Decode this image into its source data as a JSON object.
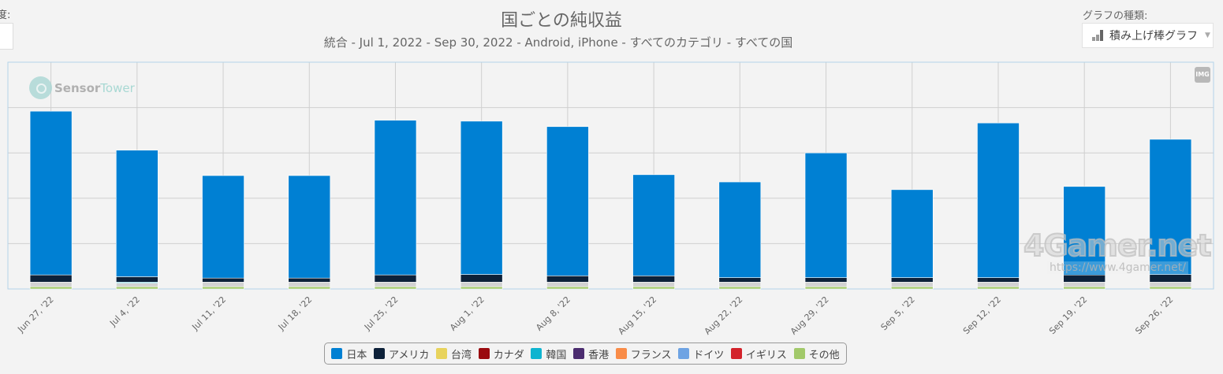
{
  "header": {
    "left_label": "度:",
    "chart_type_label": "グラフの種類:",
    "chart_type_value": "積み上げ棒グラフ",
    "img_button": "IMG"
  },
  "watermarks": {
    "sensortower_a": "Sensor",
    "sensortower_b": "Tower",
    "gamer": "4Gamer.net",
    "gamer_url": "https://www.4gamer.net/"
  },
  "colors": {
    "japan": "#0080d3",
    "america": "#0d2139",
    "taiwan": "#e8d35c",
    "canada": "#9a0a0f",
    "korea": "#0fb4d0",
    "hongkong": "#4b2c6f",
    "france": "#f98c48",
    "germany": "#6ea3e3",
    "uk": "#d3222a",
    "other": "#a2c96a",
    "grey": "#d2d2d2"
  },
  "chart_data": {
    "type": "bar",
    "stacked": true,
    "title": "国ごとの純収益",
    "subtitle": "統合 - Jul 1, 2022 - Sep 30, 2022 - Android, iPhone - すべてのカテゴリ - すべての国",
    "xlabel": "",
    "ylabel": "",
    "ylim": [
      0,
      5
    ],
    "grid": true,
    "legend_position": "bottom",
    "categories": [
      "Jun 27, '22",
      "Jul 4, '22",
      "Jul 11, '22",
      "Jul 18, '22",
      "Jul 25, '22",
      "Aug 1, '22",
      "Aug 8, '22",
      "Aug 15, '22",
      "Aug 22, '22",
      "Aug 29, '22",
      "Sep 5, '22",
      "Sep 12, '22",
      "Sep 19, '22",
      "Sep 26, '22"
    ],
    "series": [
      {
        "name": "その他",
        "color": "#a2c96a",
        "values": [
          0.05,
          0.05,
          0.05,
          0.05,
          0.05,
          0.05,
          0.05,
          0.05,
          0.05,
          0.05,
          0.05,
          0.05,
          0.05,
          0.05
        ]
      },
      {
        "name": "",
        "color": "#d2d2d2",
        "values": [
          0.1,
          0.08,
          0.1,
          0.1,
          0.1,
          0.1,
          0.1,
          0.1,
          0.1,
          0.1,
          0.1,
          0.1,
          0.1,
          0.1
        ]
      },
      {
        "name": "韓国",
        "color": "#0fb4d0",
        "values": [
          0,
          0.02,
          0,
          0,
          0,
          0,
          0,
          0,
          0,
          0,
          0,
          0,
          0,
          0
        ]
      },
      {
        "name": "アメリカ",
        "color": "#0d2139",
        "values": [
          0.16,
          0.12,
          0.09,
          0.09,
          0.16,
          0.17,
          0.14,
          0.14,
          0.1,
          0.1,
          0.1,
          0.1,
          0.16,
          0.17
        ]
      },
      {
        "name": "日本",
        "color": "#0080d3",
        "values": [
          3.61,
          2.79,
          2.26,
          2.26,
          3.41,
          3.38,
          3.29,
          2.23,
          2.11,
          2.75,
          1.94,
          3.41,
          1.95,
          2.98
        ]
      }
    ],
    "legend": [
      {
        "name": "日本",
        "color": "#0080d3"
      },
      {
        "name": "アメリカ",
        "color": "#0d2139"
      },
      {
        "name": "台湾",
        "color": "#e8d35c"
      },
      {
        "name": "カナダ",
        "color": "#9a0a0f"
      },
      {
        "name": "韓国",
        "color": "#0fb4d0"
      },
      {
        "name": "香港",
        "color": "#4b2c6f"
      },
      {
        "name": "フランス",
        "color": "#f98c48"
      },
      {
        "name": "ドイツ",
        "color": "#6ea3e3"
      },
      {
        "name": "イギリス",
        "color": "#d3222a"
      },
      {
        "name": "その他",
        "color": "#a2c96a"
      }
    ]
  }
}
